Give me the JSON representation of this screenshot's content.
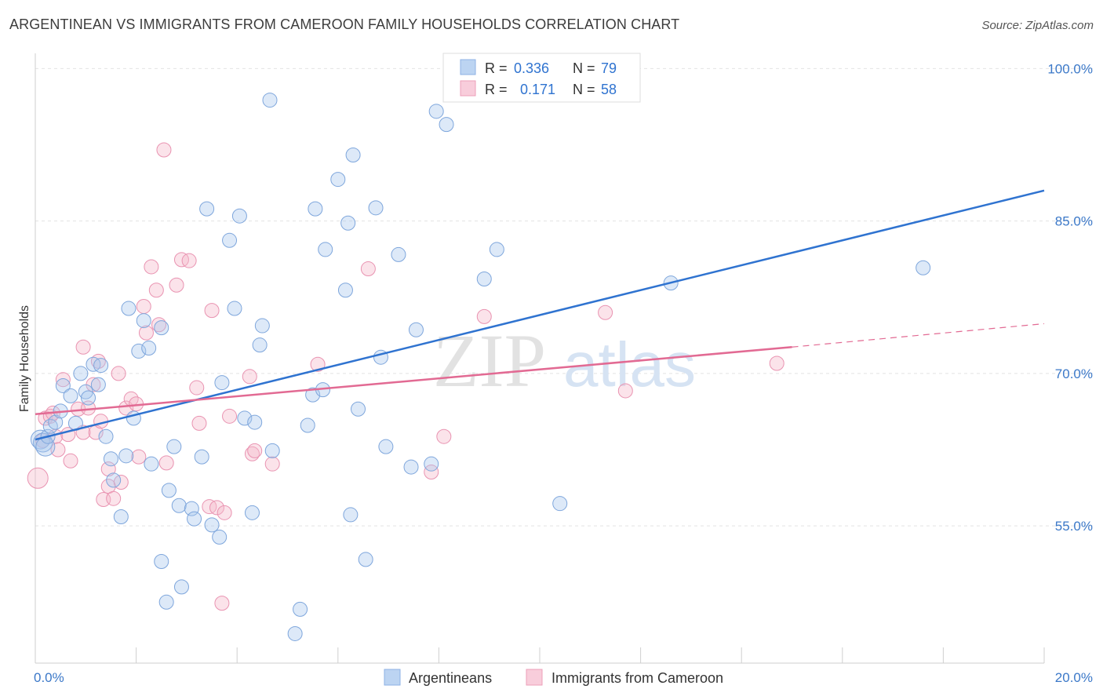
{
  "chart_data": {
    "type": "scatter",
    "title": "ARGENTINEAN VS IMMIGRANTS FROM CAMEROON FAMILY HOUSEHOLDS CORRELATION CHART",
    "source": "Source: ZipAtlas.com",
    "xlabel": "",
    "ylabel": "Family Households",
    "xlim": [
      0,
      20
    ],
    "ylim": [
      41.5,
      101.5
    ],
    "x_tick_labels": [
      "0.0%",
      "20.0%"
    ],
    "y_ticks": [
      55,
      70,
      85,
      100
    ],
    "y_tick_labels": [
      "55.0%",
      "70.0%",
      "85.0%",
      "100.0%"
    ],
    "watermark": "ZIPatlas",
    "legend_position": "top-center",
    "series": [
      {
        "name": "Argentineans",
        "color": "#a9c8ee",
        "line_color": "#2f73d0",
        "legend_r_label": "R =",
        "legend_r": "0.336",
        "legend_n_label": "N =",
        "legend_n": "79",
        "trend": {
          "x": [
            0.0,
            20.0
          ],
          "y": [
            63.5,
            88.0
          ]
        },
        "points": [
          [
            0.1,
            63.5
          ],
          [
            0.15,
            63.2
          ],
          [
            0.2,
            62.8
          ],
          [
            0.25,
            63.8
          ],
          [
            0.3,
            64.8
          ],
          [
            0.4,
            65.2
          ],
          [
            0.5,
            66.3
          ],
          [
            0.55,
            68.8
          ],
          [
            0.7,
            67.8
          ],
          [
            0.8,
            65.1
          ],
          [
            0.9,
            70.0
          ],
          [
            1.0,
            68.2
          ],
          [
            1.05,
            67.6
          ],
          [
            1.15,
            70.9
          ],
          [
            1.25,
            68.9
          ],
          [
            1.3,
            70.8
          ],
          [
            1.4,
            63.8
          ],
          [
            1.5,
            61.6
          ],
          [
            1.55,
            59.5
          ],
          [
            1.7,
            55.9
          ],
          [
            1.8,
            61.9
          ],
          [
            1.85,
            76.4
          ],
          [
            1.95,
            65.6
          ],
          [
            2.05,
            72.2
          ],
          [
            2.15,
            75.2
          ],
          [
            2.25,
            72.5
          ],
          [
            2.3,
            61.1
          ],
          [
            2.5,
            74.5
          ],
          [
            2.5,
            51.5
          ],
          [
            2.6,
            47.5
          ],
          [
            2.65,
            58.5
          ],
          [
            2.75,
            62.8
          ],
          [
            2.85,
            57.0
          ],
          [
            2.9,
            49.0
          ],
          [
            3.1,
            56.7
          ],
          [
            3.15,
            55.7
          ],
          [
            3.3,
            61.8
          ],
          [
            3.4,
            86.2
          ],
          [
            3.5,
            55.1
          ],
          [
            3.65,
            53.9
          ],
          [
            3.7,
            69.1
          ],
          [
            3.85,
            83.1
          ],
          [
            3.95,
            76.4
          ],
          [
            4.05,
            85.5
          ],
          [
            4.15,
            65.6
          ],
          [
            4.3,
            56.3
          ],
          [
            4.35,
            65.2
          ],
          [
            4.45,
            72.8
          ],
          [
            4.5,
            74.7
          ],
          [
            4.65,
            96.9
          ],
          [
            4.7,
            62.4
          ],
          [
            5.15,
            44.4
          ],
          [
            5.25,
            46.8
          ],
          [
            5.4,
            64.9
          ],
          [
            5.5,
            67.9
          ],
          [
            5.55,
            86.2
          ],
          [
            5.7,
            68.4
          ],
          [
            5.75,
            82.2
          ],
          [
            6.0,
            89.1
          ],
          [
            6.15,
            78.2
          ],
          [
            6.2,
            84.8
          ],
          [
            6.25,
            56.1
          ],
          [
            6.3,
            91.5
          ],
          [
            6.4,
            66.5
          ],
          [
            6.55,
            51.7
          ],
          [
            6.75,
            86.3
          ],
          [
            6.85,
            71.6
          ],
          [
            6.95,
            62.8
          ],
          [
            7.2,
            81.7
          ],
          [
            7.45,
            60.8
          ],
          [
            7.55,
            74.3
          ],
          [
            7.85,
            61.1
          ],
          [
            7.95,
            95.8
          ],
          [
            8.15,
            94.5
          ],
          [
            8.9,
            79.3
          ],
          [
            9.15,
            82.2
          ],
          [
            10.4,
            57.2
          ],
          [
            12.6,
            78.9
          ],
          [
            17.6,
            80.4
          ]
        ]
      },
      {
        "name": "Immigrants from Cameroon",
        "color": "#f4b8cb",
        "line_color": "#e26a93",
        "legend_r_label": "R =",
        "legend_r": "0.171",
        "legend_n_label": "N =",
        "legend_n": "58",
        "trend": {
          "x": [
            0.0,
            15.0
          ],
          "y": [
            66.0,
            72.6
          ]
        },
        "trend_dashed": {
          "x": [
            15.0,
            20.0
          ],
          "y": [
            72.6,
            74.9
          ]
        },
        "points": [
          [
            0.05,
            59.7
          ],
          [
            0.15,
            63.4
          ],
          [
            0.2,
            65.6
          ],
          [
            0.3,
            65.8
          ],
          [
            0.35,
            66.1
          ],
          [
            0.4,
            63.8
          ],
          [
            0.45,
            62.5
          ],
          [
            0.55,
            69.4
          ],
          [
            0.65,
            64.0
          ],
          [
            0.7,
            61.4
          ],
          [
            0.85,
            66.5
          ],
          [
            0.95,
            64.2
          ],
          [
            0.95,
            72.6
          ],
          [
            1.05,
            66.6
          ],
          [
            1.15,
            68.9
          ],
          [
            1.2,
            64.2
          ],
          [
            1.25,
            71.2
          ],
          [
            1.3,
            65.3
          ],
          [
            1.35,
            57.6
          ],
          [
            1.45,
            60.6
          ],
          [
            1.45,
            58.9
          ],
          [
            1.55,
            57.7
          ],
          [
            1.65,
            70.0
          ],
          [
            1.7,
            59.3
          ],
          [
            1.8,
            66.6
          ],
          [
            1.9,
            67.5
          ],
          [
            2.0,
            67.0
          ],
          [
            2.05,
            61.8
          ],
          [
            2.15,
            76.6
          ],
          [
            2.2,
            74.0
          ],
          [
            2.3,
            80.5
          ],
          [
            2.4,
            78.2
          ],
          [
            2.45,
            74.8
          ],
          [
            2.55,
            92.0
          ],
          [
            2.6,
            61.2
          ],
          [
            2.8,
            78.7
          ],
          [
            2.9,
            81.2
          ],
          [
            3.05,
            81.1
          ],
          [
            3.2,
            68.6
          ],
          [
            3.25,
            65.1
          ],
          [
            3.45,
            56.9
          ],
          [
            3.5,
            76.2
          ],
          [
            3.6,
            56.8
          ],
          [
            3.7,
            47.4
          ],
          [
            3.75,
            56.3
          ],
          [
            3.85,
            65.8
          ],
          [
            4.25,
            69.7
          ],
          [
            4.3,
            62.1
          ],
          [
            4.35,
            62.4
          ],
          [
            4.7,
            61.1
          ],
          [
            5.6,
            70.9
          ],
          [
            6.6,
            80.3
          ],
          [
            7.85,
            60.3
          ],
          [
            8.1,
            63.8
          ],
          [
            8.9,
            75.6
          ],
          [
            11.3,
            76.0
          ],
          [
            11.7,
            68.3
          ],
          [
            14.7,
            71.0
          ]
        ]
      }
    ]
  }
}
